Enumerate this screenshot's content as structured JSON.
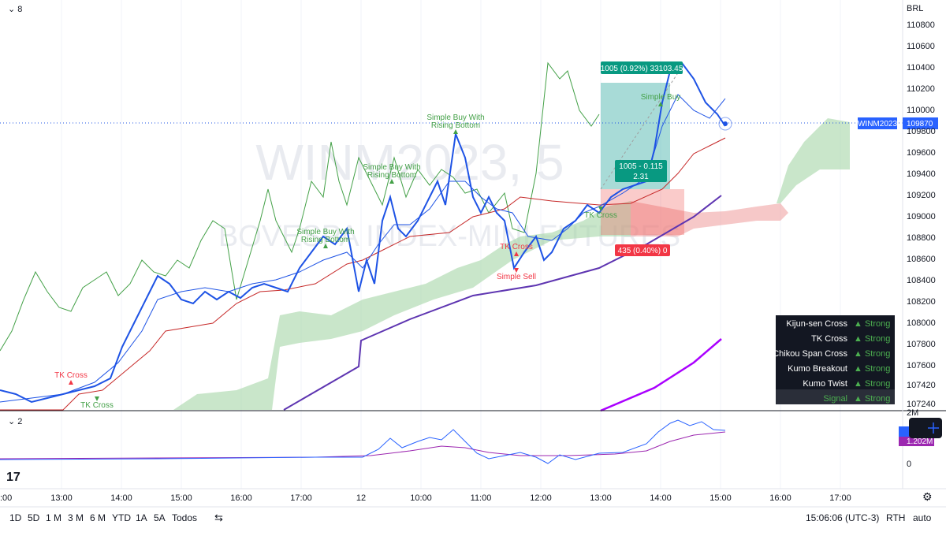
{
  "header": {
    "pane1_count": "8",
    "pane2_count": "2",
    "currency": "BRL"
  },
  "watermark": {
    "symbol": "WINM2023, 5",
    "exchange": "BOVESPA INDEX-MINI FUTURES"
  },
  "price_axis": [
    "110800",
    "110600",
    "110400",
    "110200",
    "110000",
    "109800",
    "109600",
    "109400",
    "109200",
    "109000",
    "108800",
    "108600",
    "108400",
    "108200",
    "108000",
    "107800",
    "107600",
    "107420",
    "107240"
  ],
  "symbol_tag": {
    "name": "WINM2023",
    "price": "109870"
  },
  "volume_axis": {
    "top": "2M",
    "zero": "0",
    "value": "1.202M"
  },
  "time_axis": [
    ":00",
    "13:00",
    "14:00",
    "15:00",
    "16:00",
    "17:00",
    "12",
    "10:00",
    "11:00",
    "12:00",
    "13:00",
    "14:00",
    "15:00",
    "16:00",
    "17:00"
  ],
  "annotations": [
    {
      "text": "TK Cross",
      "color": "red"
    },
    {
      "text": "TK Cross",
      "color": "green"
    },
    {
      "text": "Simple Buy With Rising Bottom",
      "color": "green"
    },
    {
      "text": "Simple Buy With Rising Bottom",
      "color": "green"
    },
    {
      "text": "Simple Buy With Rising Bottom",
      "color": "green"
    },
    {
      "text": "TK Cross",
      "color": "red"
    },
    {
      "text": "Simple Sell",
      "color": "red"
    },
    {
      "text": "TK Cross",
      "color": "green"
    },
    {
      "text": "Simple Buy",
      "color": "green"
    }
  ],
  "position": {
    "target": "1005 (0.92%) 33103.45",
    "center_line1": "1005 - 0.115",
    "center_line2": "2.31",
    "stop": "435 (0.40%) 0"
  },
  "signal_table": {
    "rows": [
      {
        "label": "Kijun-sen Cross",
        "status": "▲ Strong"
      },
      {
        "label": "TK Cross",
        "status": "▲ Strong"
      },
      {
        "label": "Chikou Span Cross",
        "status": "▲ Strong"
      },
      {
        "label": "Kumo Breakout",
        "status": "▲ Strong"
      },
      {
        "label": "Kumo Twist",
        "status": "▲ Strong"
      },
      {
        "label": "Signal",
        "status": "▲ Strong"
      }
    ]
  },
  "toolbar": {
    "ranges": [
      "1D",
      "5D",
      "1 M",
      "3 M",
      "6 M",
      "YTD",
      "1A",
      "5A",
      "Todos"
    ],
    "clock": "15:06:06 (UTC-3)",
    "session": "RTH",
    "scale": "auto"
  }
}
